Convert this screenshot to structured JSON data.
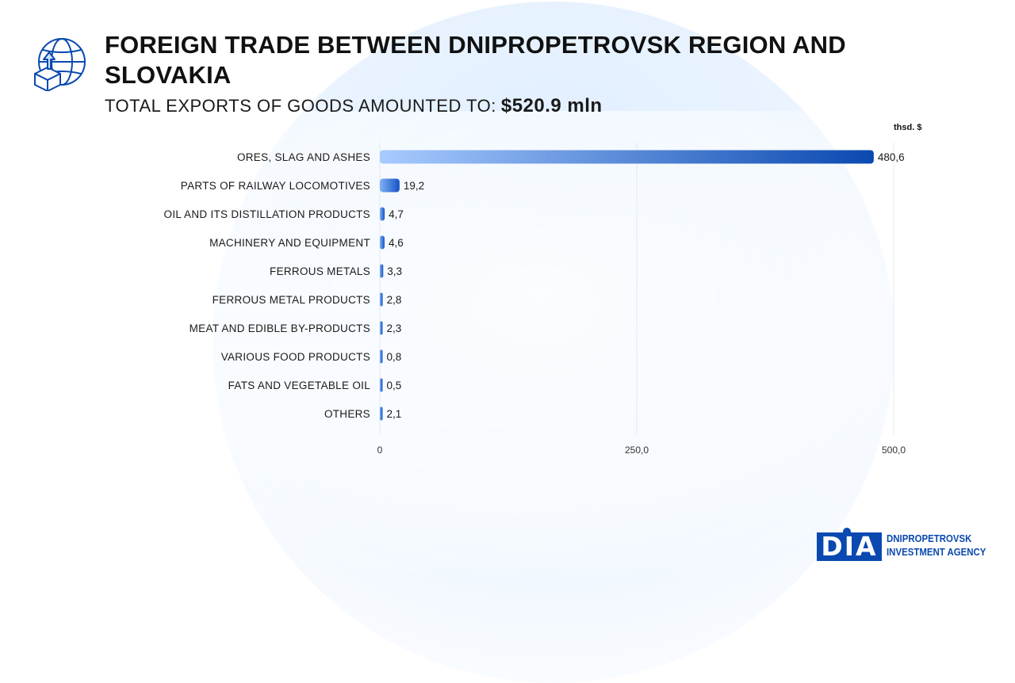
{
  "header": {
    "title": "FOREIGN TRADE BETWEEN DNIPROPETROVSK REGION AND SLOVAKIA",
    "subtitle_label": "TOTAL EXPORTS OF GOODS AMOUNTED TO:",
    "subtitle_value": "$520.9 mln"
  },
  "icons": {
    "logo": "globe-export-icon"
  },
  "colors": {
    "bar_start": "#a8cbff",
    "bar_end": "#0a49b0",
    "brand": "#0a49b0",
    "gridline": "#e5e8ee"
  },
  "chart_data": {
    "type": "bar",
    "orientation": "horizontal",
    "unit": "thsd. $",
    "categories": [
      "ORES, SLAG AND ASHES",
      "PARTS OF RAILWAY LOCOMOTIVES",
      "OIL AND ITS DISTILLATION PRODUCTS",
      "MACHINERY AND EQUIPMENT",
      "FERROUS METALS",
      "FERROUS METAL PRODUCTS",
      "MEAT AND EDIBLE BY-PRODUCTS",
      "VARIOUS FOOD PRODUCTS",
      "FATS AND VEGETABLE OIL",
      "OTHERS"
    ],
    "values": [
      480.6,
      19.2,
      4.7,
      4.6,
      3.3,
      2.8,
      2.3,
      0.8,
      0.5,
      2.1
    ],
    "value_labels": [
      "480,6",
      "19,2",
      "4,7",
      "4,6",
      "3,3",
      "2,8",
      "2,3",
      "0,8",
      "0,5",
      "2,1"
    ],
    "xlim": [
      0,
      500
    ],
    "xticks": [
      0,
      250,
      500
    ],
    "xtick_labels": [
      "0",
      "250,0",
      "500,0"
    ],
    "grid": true
  },
  "brand": {
    "mark": "DIA",
    "line1": "DNIPROPETROVSK",
    "line2": "INVESTMENT AGENCY"
  }
}
